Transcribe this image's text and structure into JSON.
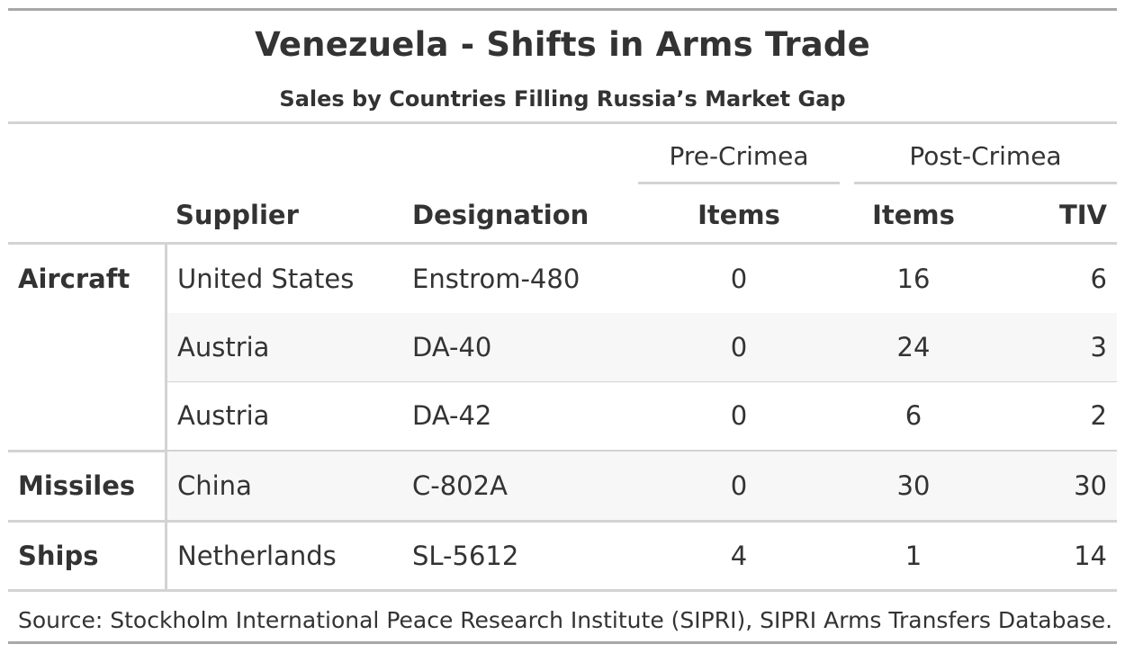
{
  "chart_data": {
    "type": "table",
    "title": "Venezuela - Shifts in Arms Trade",
    "subtitle": "Sales by Countries Filling Russia’s Market Gap",
    "spanners": {
      "pre": "Pre-Crimea",
      "post": "Post-Crimea"
    },
    "columns": {
      "supplier": "Supplier",
      "designation": "Designation",
      "pre_items": "Items",
      "post_items": "Items",
      "post_tiv": "TIV"
    },
    "groups": [
      {
        "label": "Aircraft",
        "rows": [
          {
            "supplier": "United States",
            "designation": "Enstrom-480",
            "pre_items": "0",
            "post_items": "16",
            "post_tiv": "6"
          },
          {
            "supplier": "Austria",
            "designation": "DA-40",
            "pre_items": "0",
            "post_items": "24",
            "post_tiv": "3"
          },
          {
            "supplier": "Austria",
            "designation": "DA-42",
            "pre_items": "0",
            "post_items": "6",
            "post_tiv": "2"
          }
        ]
      },
      {
        "label": "Missiles",
        "rows": [
          {
            "supplier": "China",
            "designation": "C-802A",
            "pre_items": "0",
            "post_items": "30",
            "post_tiv": "30"
          }
        ]
      },
      {
        "label": "Ships",
        "rows": [
          {
            "supplier": "Netherlands",
            "designation": "SL-5612",
            "pre_items": "4",
            "post_items": "1",
            "post_tiv": "14"
          }
        ]
      }
    ],
    "source_note": "Source: Stockholm International Peace Research Institute (SIPRI), SIPRI Arms Transfers Database."
  }
}
